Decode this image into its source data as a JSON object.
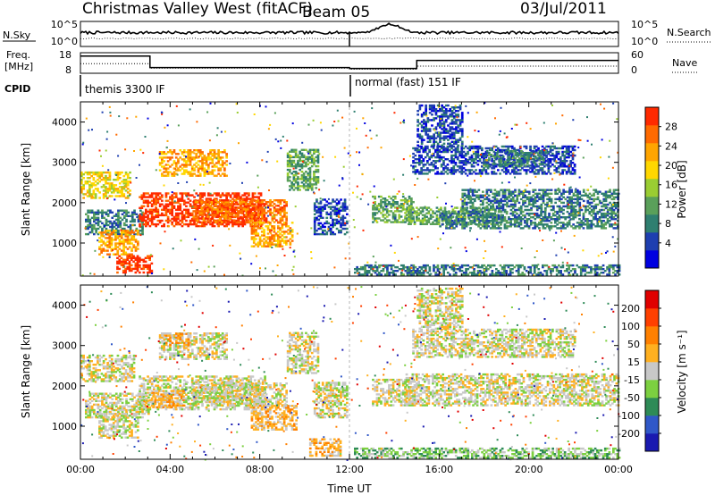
{
  "header": {
    "title": "Christmas Valley West (fitACF)",
    "beam": "Beam 05",
    "date": "03/Jul/2011"
  },
  "chart_data": [
    {
      "type": "line",
      "name": "noise",
      "left_label": "N.Sky",
      "right_label": "N.Search",
      "left_ticks": [
        "10^5",
        "10^0"
      ],
      "right_ticks": [
        "10^5",
        "10^0"
      ]
    },
    {
      "type": "line",
      "name": "frequency",
      "left_label_top": "Freq.",
      "left_label_bottom": "[MHz]",
      "right_label": "Nave",
      "left_ticks": [
        "18",
        "8"
      ],
      "right_ticks": [
        "60",
        "0"
      ],
      "freq_series": [
        {
          "x": 0,
          "y": 17.5
        },
        {
          "x": 3.1,
          "y": 17.5
        },
        {
          "x": 3.1,
          "y": 10
        },
        {
          "x": 12,
          "y": 10
        },
        {
          "x": 12,
          "y": 9.4
        },
        {
          "x": 15,
          "y": 9.4
        },
        {
          "x": 15,
          "y": 14.7
        },
        {
          "x": 24,
          "y": 14.7
        }
      ],
      "nave_series": [
        {
          "x": 0,
          "y": 31
        },
        {
          "x": 3.1,
          "y": 31
        },
        {
          "x": 3.1,
          "y": 13
        },
        {
          "x": 12,
          "y": 13
        },
        {
          "x": 12,
          "y": 9
        },
        {
          "x": 15,
          "y": 9
        },
        {
          "x": 15,
          "y": 21
        },
        {
          "x": 24,
          "y": 21
        }
      ]
    },
    {
      "type": "text",
      "name": "cpid",
      "label": "CPID",
      "segments": [
        {
          "text": "themis 3300 IF",
          "start": 0
        },
        {
          "text": "normal (fast) 151 IF",
          "start": 12
        }
      ]
    },
    {
      "type": "heatmap",
      "name": "power",
      "ylabel": "Slant Range [km]",
      "yticks": [
        1000,
        2000,
        3000,
        4000
      ],
      "ylim": [
        180,
        4500
      ],
      "xlim": [
        0,
        24
      ],
      "colorbar_label": "Power [dB]",
      "colorbar_ticks": [
        "28",
        "24",
        "20",
        "16",
        "12",
        "8",
        "4"
      ],
      "colors": [
        "#0000e0",
        "#1e3fb0",
        "#2f7f70",
        "#5aa05a",
        "#9acd32",
        "#ffd700",
        "#ffa500",
        "#ff6a00",
        "#ff2a00"
      ],
      "echo_regions": [
        {
          "t0": 0.0,
          "t1": 2.2,
          "r0": 2100,
          "r1": 2750,
          "c": 5
        },
        {
          "t0": 0.2,
          "t1": 2.8,
          "r0": 1200,
          "r1": 1800,
          "c": 2
        },
        {
          "t0": 0.8,
          "t1": 2.6,
          "r0": 700,
          "r1": 1300,
          "c": 6
        },
        {
          "t0": 1.6,
          "t1": 3.2,
          "r0": 250,
          "r1": 700,
          "c": 8
        },
        {
          "t0": 2.6,
          "t1": 8.0,
          "r0": 1400,
          "r1": 2250,
          "c": 8
        },
        {
          "t0": 3.5,
          "t1": 6.5,
          "r0": 2650,
          "r1": 3300,
          "c": 6
        },
        {
          "t0": 5.0,
          "t1": 9.2,
          "r0": 1500,
          "r1": 2050,
          "c": 7
        },
        {
          "t0": 7.6,
          "t1": 9.4,
          "r0": 900,
          "r1": 1500,
          "c": 6
        },
        {
          "t0": 9.2,
          "t1": 10.6,
          "r0": 2300,
          "r1": 3300,
          "c": 3
        },
        {
          "t0": 10.4,
          "t1": 11.9,
          "r0": 1200,
          "r1": 2100,
          "c": 1
        },
        {
          "t0": 13.0,
          "t1": 14.8,
          "r0": 1500,
          "r1": 2150,
          "c": 3
        },
        {
          "t0": 14.5,
          "t1": 18.8,
          "r0": 1450,
          "r1": 1900,
          "c": 3
        },
        {
          "t0": 16.0,
          "t1": 24.0,
          "r0": 1350,
          "r1": 1800,
          "c": 2
        },
        {
          "t0": 17.0,
          "t1": 24.0,
          "r0": 1800,
          "r1": 2300,
          "c": 2
        },
        {
          "t0": 14.8,
          "t1": 22.0,
          "r0": 2700,
          "r1": 3400,
          "c": 1
        },
        {
          "t0": 18.0,
          "t1": 20.8,
          "r0": 2900,
          "r1": 3300,
          "c": 2
        },
        {
          "t0": 15.0,
          "t1": 17.0,
          "r0": 3400,
          "r1": 4400,
          "c": 1
        },
        {
          "t0": 12.2,
          "t1": 24.0,
          "r0": 200,
          "r1": 450,
          "c": 2
        }
      ]
    },
    {
      "type": "heatmap",
      "name": "velocity",
      "ylabel": "Slant Range [km]",
      "yticks": [
        1000,
        2000,
        3000,
        4000
      ],
      "ylim": [
        180,
        4500
      ],
      "xlim": [
        0,
        24
      ],
      "xlabel": "Time UT",
      "xticks": [
        "00:00",
        "04:00",
        "08:00",
        "12:00",
        "16:00",
        "20:00",
        "00:00"
      ],
      "colorbar_label": "Velocity [m s⁻¹]",
      "colorbar_ticks": [
        "200",
        "100",
        "50",
        "15",
        "-15",
        "-50",
        "-100",
        "-200"
      ],
      "colors": [
        "#1a1ab0",
        "#3058c8",
        "#2e8b57",
        "#7cd040",
        "#c8c8c8",
        "#ffb020",
        "#ff8000",
        "#ff4000",
        "#e00000"
      ],
      "echo_regions": [
        {
          "t0": 0.0,
          "t1": 2.4,
          "r0": 2100,
          "r1": 2750,
          "c": 4
        },
        {
          "t0": 0.2,
          "t1": 3.0,
          "r0": 1200,
          "r1": 1800,
          "c": 4
        },
        {
          "t0": 0.8,
          "t1": 2.6,
          "r0": 700,
          "r1": 1300,
          "c": 4
        },
        {
          "t0": 2.6,
          "t1": 8.2,
          "r0": 1400,
          "r1": 2250,
          "c": 4
        },
        {
          "t0": 3.2,
          "t1": 4.6,
          "r0": 1450,
          "r1": 1900,
          "c": 5
        },
        {
          "t0": 3.5,
          "t1": 6.5,
          "r0": 2650,
          "r1": 3300,
          "c": 4
        },
        {
          "t0": 3.6,
          "t1": 4.8,
          "r0": 3000,
          "r1": 3300,
          "c": 5
        },
        {
          "t0": 5.0,
          "t1": 9.2,
          "r0": 1500,
          "r1": 2050,
          "c": 4
        },
        {
          "t0": 7.6,
          "t1": 9.6,
          "r0": 900,
          "r1": 1500,
          "c": 5
        },
        {
          "t0": 9.2,
          "t1": 10.6,
          "r0": 2300,
          "r1": 3300,
          "c": 4
        },
        {
          "t0": 10.2,
          "t1": 11.6,
          "r0": 250,
          "r1": 700,
          "c": 5
        },
        {
          "t0": 10.4,
          "t1": 11.9,
          "r0": 1200,
          "r1": 2100,
          "c": 4
        },
        {
          "t0": 13.0,
          "t1": 14.8,
          "r0": 1500,
          "r1": 2150,
          "c": 4
        },
        {
          "t0": 14.5,
          "t1": 24.0,
          "r0": 1500,
          "r1": 2300,
          "c": 4
        },
        {
          "t0": 14.8,
          "t1": 22.0,
          "r0": 2700,
          "r1": 3400,
          "c": 4
        },
        {
          "t0": 15.0,
          "t1": 17.0,
          "r0": 3400,
          "r1": 4400,
          "c": 4
        },
        {
          "t0": 12.2,
          "t1": 24.0,
          "r0": 200,
          "r1": 450,
          "c": 3
        }
      ]
    }
  ]
}
